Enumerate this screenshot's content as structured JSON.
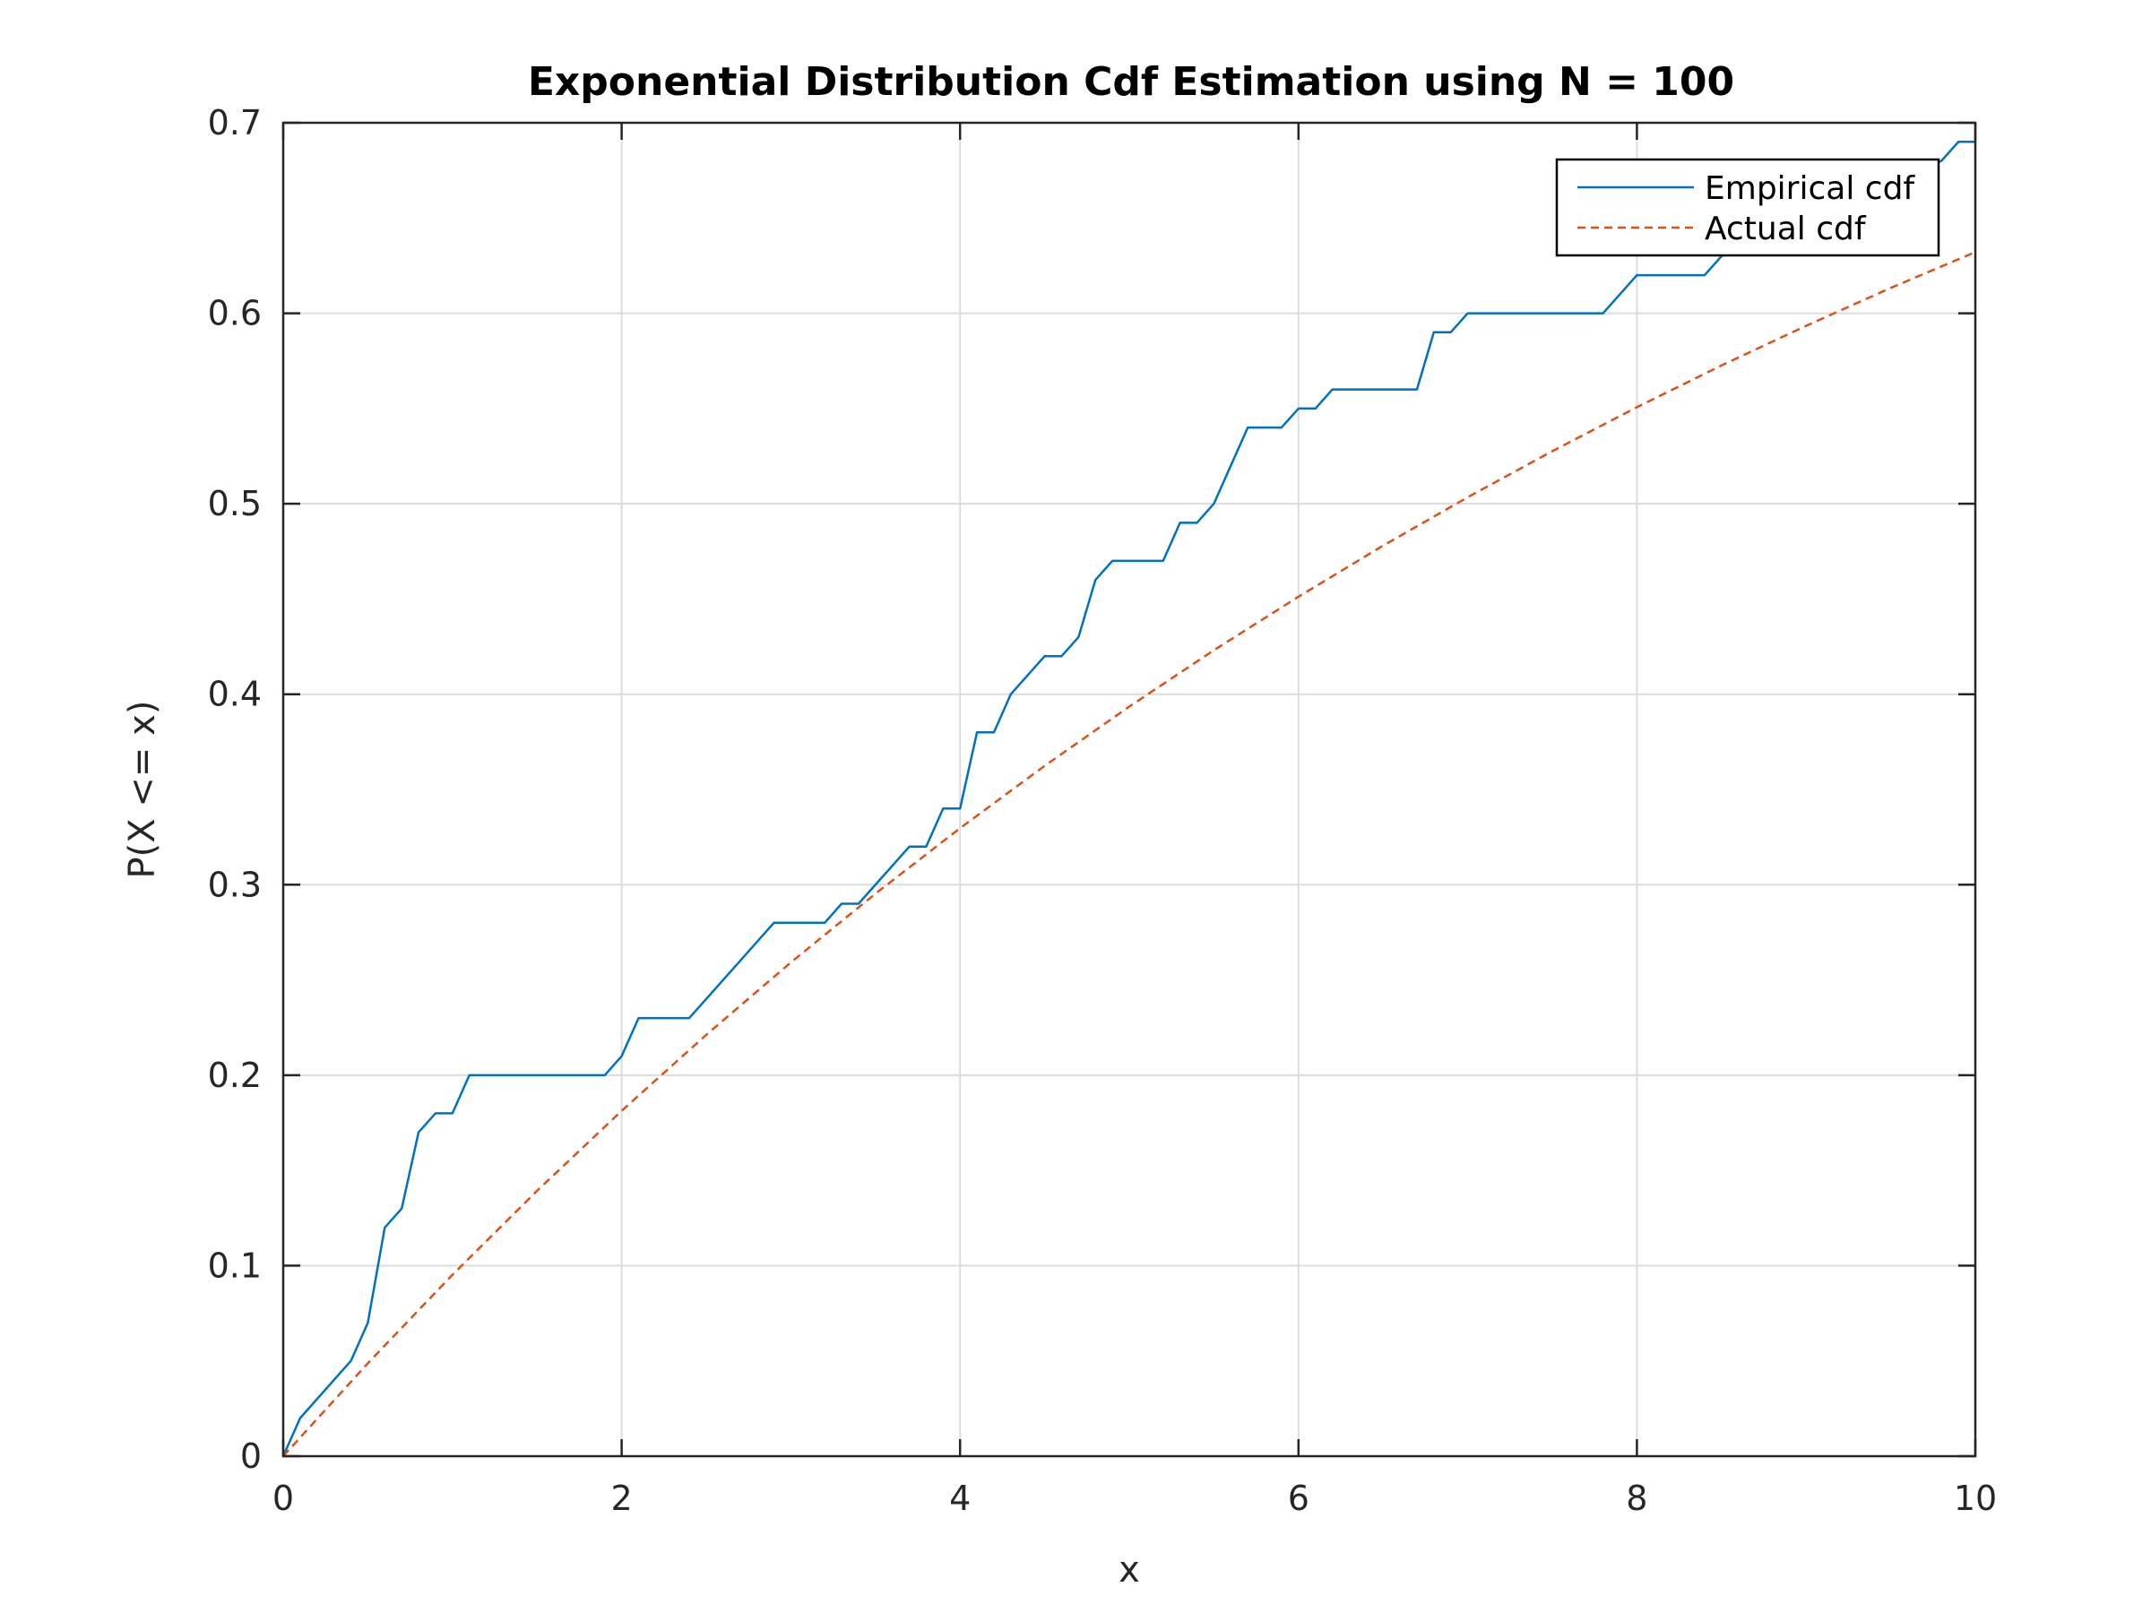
{
  "chart_data": {
    "type": "line",
    "title": "Exponential Distribution Cdf Estimation using N = 100",
    "xlabel": "x",
    "ylabel": "P(X <= x)",
    "xlim": [
      0,
      10
    ],
    "ylim": [
      0,
      0.7
    ],
    "x_ticks": [
      0,
      2,
      4,
      6,
      8,
      10
    ],
    "y_ticks": [
      0,
      0.1,
      0.2,
      0.3,
      0.4,
      0.5,
      0.6,
      0.7
    ],
    "x_tick_labels": [
      "0",
      "2",
      "4",
      "6",
      "8",
      "10"
    ],
    "y_tick_labels": [
      "0",
      "0.1",
      "0.2",
      "0.3",
      "0.4",
      "0.5",
      "0.6",
      "0.7"
    ],
    "grid": true,
    "legend_position": "top-right",
    "series": [
      {
        "name": "Empirical cdf",
        "color": "#0072BD",
        "style": "solid",
        "x": [
          0,
          0.1,
          0.4,
          0.5,
          0.6,
          0.7,
          0.8,
          0.9,
          1.0,
          1.1,
          1.9,
          2.0,
          2.1,
          2.4,
          2.9,
          3.2,
          3.3,
          3.4,
          3.7,
          3.8,
          3.9,
          4.0,
          4.1,
          4.2,
          4.3,
          4.5,
          4.6,
          4.7,
          4.8,
          4.9,
          5.2,
          5.3,
          5.4,
          5.5,
          5.7,
          5.9,
          6.0,
          6.1,
          6.2,
          6.7,
          6.8,
          6.9,
          7.0,
          7.8,
          8.0,
          8.4,
          8.5,
          8.7,
          9.0,
          9.8,
          9.9,
          10.0
        ],
        "values": [
          0,
          0.02,
          0.05,
          0.07,
          0.12,
          0.13,
          0.17,
          0.18,
          0.18,
          0.2,
          0.2,
          0.21,
          0.23,
          0.23,
          0.28,
          0.28,
          0.29,
          0.29,
          0.32,
          0.32,
          0.34,
          0.34,
          0.38,
          0.38,
          0.4,
          0.42,
          0.42,
          0.43,
          0.46,
          0.47,
          0.47,
          0.49,
          0.49,
          0.5,
          0.54,
          0.54,
          0.55,
          0.55,
          0.56,
          0.56,
          0.59,
          0.59,
          0.6,
          0.6,
          0.62,
          0.62,
          0.63,
          0.64,
          0.65,
          0.68,
          0.69,
          0.69
        ]
      },
      {
        "name": "Actual cdf",
        "color": "#D95319",
        "style": "dashed",
        "x": [
          0,
          0.5,
          1,
          1.5,
          2,
          2.5,
          3,
          3.5,
          4,
          4.5,
          5,
          5.5,
          6,
          6.5,
          7,
          7.5,
          8,
          8.5,
          9,
          9.5,
          10
        ],
        "values": [
          0,
          0.0488,
          0.0952,
          0.1393,
          0.1813,
          0.2212,
          0.2592,
          0.2953,
          0.3297,
          0.3624,
          0.3935,
          0.4231,
          0.4512,
          0.478,
          0.5034,
          0.5276,
          0.5507,
          0.5726,
          0.5934,
          0.6133,
          0.6321
        ]
      }
    ]
  }
}
